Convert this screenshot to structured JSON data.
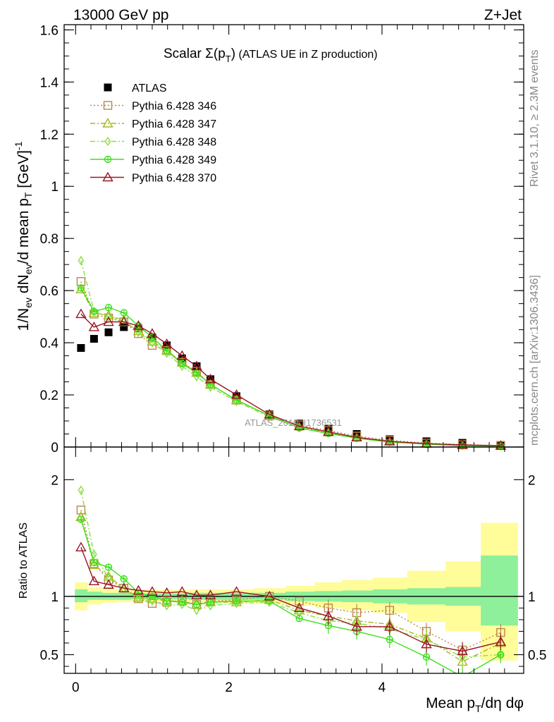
{
  "header": {
    "energy": "13000 GeV pp",
    "process": "Z+Jet"
  },
  "side": {
    "rivet": "Rivet 3.1.10, ≥ 2.3M events",
    "mcplots": "mcplots.cern.ch [arXiv:1306.3436]"
  },
  "colors": {
    "ATLAS": "#000000",
    "Pythia 6.428 346": "#b8874e",
    "Pythia 6.428 347": "#a8b81a",
    "Pythia 6.428 348": "#88e040",
    "Pythia 6.428 349": "#3ee01a",
    "Pythia 6.428 370": "#9a1424",
    "band_stat": "#8ef09a",
    "band_syst": "#fffc9a"
  },
  "chart_data": [
    {
      "type": "scatter",
      "title": "Scalar Σ(pT) (ATLAS UE in Z production)",
      "title_main": "Scalar ",
      "title_sym": "Σ(p",
      "title_sub": "T",
      "title_close": ")",
      "title_tail": " (ATLAS UE in Z production)",
      "ylabel": "1/Nev dNev/d mean pT [GeV]-1",
      "ylabel_parts": {
        "a": "1/N",
        "sub1": "ev",
        "b": " dN",
        "sub2": "ev",
        "c": "/d mean p",
        "sub3": "T",
        "d": " [GeV]",
        "sup": "-1"
      },
      "watermark": "ATLAS_2019_I1736531",
      "ylim": [
        0,
        1.62
      ],
      "yticks": [
        0,
        0.2,
        0.4,
        0.6,
        0.8,
        1,
        1.2,
        1.4,
        1.6
      ],
      "ytick_labels": [
        "0",
        "0.2",
        "0.4",
        "0.6",
        "0.8",
        "1",
        "1.2",
        "1.4",
        "1.6"
      ],
      "legend_position": "top-left",
      "x": [
        0.07,
        0.24,
        0.43,
        0.63,
        0.82,
        1.0,
        1.19,
        1.39,
        1.58,
        1.76,
        2.1,
        2.53,
        2.92,
        3.3,
        3.67,
        4.1,
        4.58,
        5.05,
        5.55
      ],
      "series": [
        {
          "name": "ATLAS",
          "marker": "square-filled",
          "line": "none",
          "values": [
            0.38,
            0.415,
            0.44,
            0.46,
            0.455,
            0.42,
            0.39,
            0.34,
            0.31,
            0.26,
            0.195,
            0.125,
            0.09,
            0.07,
            0.05,
            0.03,
            0.022,
            0.016,
            0.008
          ]
        },
        {
          "name": "Pythia 6.428 346",
          "marker": "square-open",
          "line": "dotted",
          "values": [
            0.635,
            0.51,
            0.495,
            0.48,
            0.435,
            0.39,
            0.37,
            0.325,
            0.29,
            0.24,
            0.18,
            0.12,
            0.085,
            0.063,
            0.042,
            0.026,
            0.015,
            0.009,
            0.006
          ]
        },
        {
          "name": "Pythia 6.428 347",
          "marker": "triangle-open",
          "line": "dashdot",
          "values": [
            0.605,
            0.515,
            0.505,
            0.48,
            0.445,
            0.405,
            0.37,
            0.325,
            0.285,
            0.24,
            0.18,
            0.12,
            0.08,
            0.057,
            0.038,
            0.022,
            0.013,
            0.007,
            0.005
          ]
        },
        {
          "name": "Pythia 6.428 348",
          "marker": "diamond-open",
          "line": "dashdot",
          "values": [
            0.715,
            0.52,
            0.5,
            0.49,
            0.44,
            0.4,
            0.36,
            0.31,
            0.27,
            0.23,
            0.175,
            0.115,
            0.075,
            0.055,
            0.036,
            0.02,
            0.012,
            0.007,
            0.004
          ]
        },
        {
          "name": "Pythia 6.428 349",
          "marker": "circle-cross",
          "line": "solid",
          "values": [
            0.61,
            0.52,
            0.535,
            0.515,
            0.465,
            0.42,
            0.37,
            0.32,
            0.285,
            0.24,
            0.18,
            0.12,
            0.073,
            0.052,
            0.034,
            0.019,
            0.011,
            0.005,
            0.004
          ]
        },
        {
          "name": "Pythia 6.428 370",
          "marker": "triangle-open",
          "line": "solid",
          "values": [
            0.51,
            0.46,
            0.48,
            0.48,
            0.465,
            0.435,
            0.395,
            0.35,
            0.31,
            0.26,
            0.2,
            0.125,
            0.08,
            0.058,
            0.037,
            0.022,
            0.013,
            0.008,
            0.005
          ]
        }
      ]
    },
    {
      "type": "scatter",
      "ylabel": "Ratio to ATLAS",
      "xlabel": "Mean pT/dη dφ",
      "xlabel_parts": {
        "a": "Mean p",
        "sub": "T",
        "b": "/dη dφ"
      },
      "xlim": [
        -0.15,
        5.85
      ],
      "xticks": [
        0,
        2,
        4
      ],
      "xtick_labels": [
        "0",
        "2",
        "4"
      ],
      "ylim": [
        0.34,
        2.28
      ],
      "yticks": [
        0.5,
        1,
        2
      ],
      "ytick_labels": [
        "0.5",
        "1",
        "2"
      ],
      "bin_edges": [
        -0.01,
        0.15,
        0.34,
        0.53,
        0.72,
        0.91,
        1.1,
        1.28,
        1.48,
        1.67,
        1.86,
        2.33,
        2.74,
        3.12,
        3.48,
        3.88,
        4.33,
        4.83,
        5.29,
        5.77
      ],
      "band_stat": [
        [
          0.95,
          1.06
        ],
        [
          0.97,
          1.04
        ],
        [
          0.97,
          1.03
        ],
        [
          0.97,
          1.03
        ],
        [
          0.975,
          1.025
        ],
        [
          0.975,
          1.025
        ],
        [
          0.975,
          1.025
        ],
        [
          0.975,
          1.025
        ],
        [
          0.97,
          1.03
        ],
        [
          0.97,
          1.03
        ],
        [
          0.97,
          1.03
        ],
        [
          0.97,
          1.03
        ],
        [
          0.96,
          1.04
        ],
        [
          0.955,
          1.045
        ],
        [
          0.95,
          1.05
        ],
        [
          0.94,
          1.06
        ],
        [
          0.93,
          1.07
        ],
        [
          0.92,
          1.08
        ],
        [
          0.75,
          1.35
        ]
      ],
      "band_syst": [
        [
          0.88,
          1.12
        ],
        [
          0.93,
          1.08
        ],
        [
          0.945,
          1.065
        ],
        [
          0.95,
          1.06
        ],
        [
          0.955,
          1.055
        ],
        [
          0.955,
          1.055
        ],
        [
          0.955,
          1.055
        ],
        [
          0.955,
          1.055
        ],
        [
          0.95,
          1.06
        ],
        [
          0.95,
          1.06
        ],
        [
          0.945,
          1.06
        ],
        [
          0.94,
          1.07
        ],
        [
          0.92,
          1.09
        ],
        [
          0.9,
          1.12
        ],
        [
          0.88,
          1.14
        ],
        [
          0.86,
          1.16
        ],
        [
          0.78,
          1.22
        ],
        [
          0.7,
          1.3
        ],
        [
          0.45,
          1.63
        ]
      ],
      "series": [
        {
          "name": "Pythia 6.428 346",
          "values": [
            1.74,
            1.28,
            1.14,
            1.07,
            0.98,
            0.94,
            0.95,
            0.96,
            0.93,
            0.96,
            0.97,
            1.0,
            0.96,
            0.9,
            0.86,
            0.88,
            0.7,
            0.54,
            0.69
          ]
        },
        {
          "name": "Pythia 6.428 347",
          "values": [
            1.68,
            1.27,
            1.17,
            1.07,
            0.99,
            0.98,
            0.96,
            0.96,
            0.93,
            0.95,
            0.95,
            0.97,
            0.88,
            0.83,
            0.79,
            0.76,
            0.64,
            0.44,
            0.6
          ]
        },
        {
          "name": "Pythia 6.428 348",
          "values": [
            1.91,
            1.36,
            1.16,
            1.06,
            0.98,
            0.96,
            0.92,
            0.93,
            0.88,
            0.92,
            0.94,
            0.95,
            0.86,
            0.79,
            0.77,
            0.72,
            0.63,
            0.48,
            0.5
          ]
        },
        {
          "name": "Pythia 6.428 349",
          "values": [
            1.66,
            1.29,
            1.25,
            1.15,
            1.03,
            1.0,
            0.96,
            0.95,
            0.93,
            0.95,
            0.96,
            0.96,
            0.81,
            0.75,
            0.7,
            0.63,
            0.48,
            0.31,
            0.5
          ]
        },
        {
          "name": "Pythia 6.428 370",
          "values": [
            1.42,
            1.13,
            1.1,
            1.07,
            1.05,
            1.04,
            1.03,
            1.04,
            1.01,
            1.01,
            1.04,
            1.0,
            0.9,
            0.83,
            0.74,
            0.74,
            0.59,
            0.53,
            0.61
          ]
        }
      ]
    }
  ]
}
